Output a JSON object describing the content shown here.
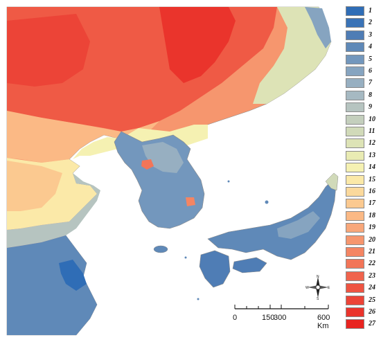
{
  "legend": {
    "items": [
      {
        "label": "1",
        "color": "#2f6db6"
      },
      {
        "label": "2",
        "color": "#3a73b7"
      },
      {
        "label": "3",
        "color": "#4f7db5"
      },
      {
        "label": "4",
        "color": "#5f89b8"
      },
      {
        "label": "5",
        "color": "#7397bd"
      },
      {
        "label": "6",
        "color": "#86a4c0"
      },
      {
        "label": "7",
        "color": "#97afc1"
      },
      {
        "label": "8",
        "color": "#a6b9c2"
      },
      {
        "label": "9",
        "color": "#b6c4c0"
      },
      {
        "label": "10",
        "color": "#c4cfbd"
      },
      {
        "label": "11",
        "color": "#d1dab9"
      },
      {
        "label": "12",
        "color": "#dde3b6"
      },
      {
        "label": "13",
        "color": "#e9ebb3"
      },
      {
        "label": "14",
        "color": "#f5f1b2"
      },
      {
        "label": "15",
        "color": "#fbe9a8"
      },
      {
        "label": "16",
        "color": "#fbd99c"
      },
      {
        "label": "17",
        "color": "#fbc990"
      },
      {
        "label": "18",
        "color": "#fbb985"
      },
      {
        "label": "19",
        "color": "#f8a77a"
      },
      {
        "label": "20",
        "color": "#f6966e"
      },
      {
        "label": "21",
        "color": "#f48563"
      },
      {
        "label": "22",
        "color": "#f27558"
      },
      {
        "label": "23",
        "color": "#f0644d"
      },
      {
        "label": "24",
        "color": "#ee5442"
      },
      {
        "label": "25",
        "color": "#ec4437"
      },
      {
        "label": "26",
        "color": "#ea342c"
      },
      {
        "label": "27",
        "color": "#e82420"
      }
    ]
  },
  "scale": {
    "ticks": [
      "0",
      "150",
      "300",
      "600 Km"
    ]
  },
  "compass": {
    "n": "N",
    "s": "S",
    "e": "E",
    "w": "W"
  },
  "colors": {
    "sea": "#ffffff",
    "coast": "#8a8a8a"
  }
}
